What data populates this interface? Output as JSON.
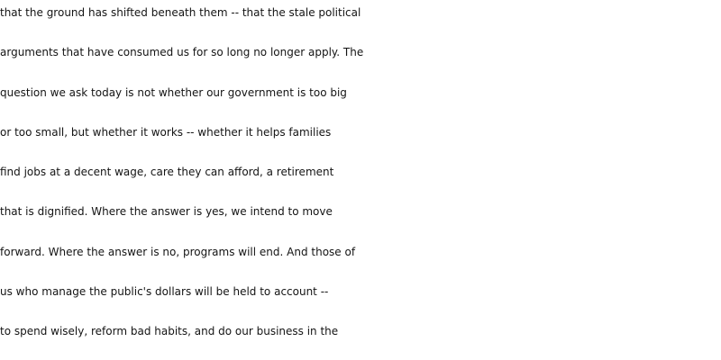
{
  "document": {
    "lines": [
      "that the ground has shifted beneath them -- that the stale political",
      "arguments that have consumed us for so long no longer apply. The",
      "question we ask today is not whether our government is too big",
      "or too small, but whether it works -- whether it helps families",
      "find jobs at a decent wage, care they can afford, a retirement",
      "that is dignified. Where the answer is yes, we intend to move",
      "forward. Where the answer is no, programs will end. And those of",
      "us who manage the public's dollars will be held to account --",
      "to spend wisely, reform bad habits, and do our business in the"
    ]
  }
}
